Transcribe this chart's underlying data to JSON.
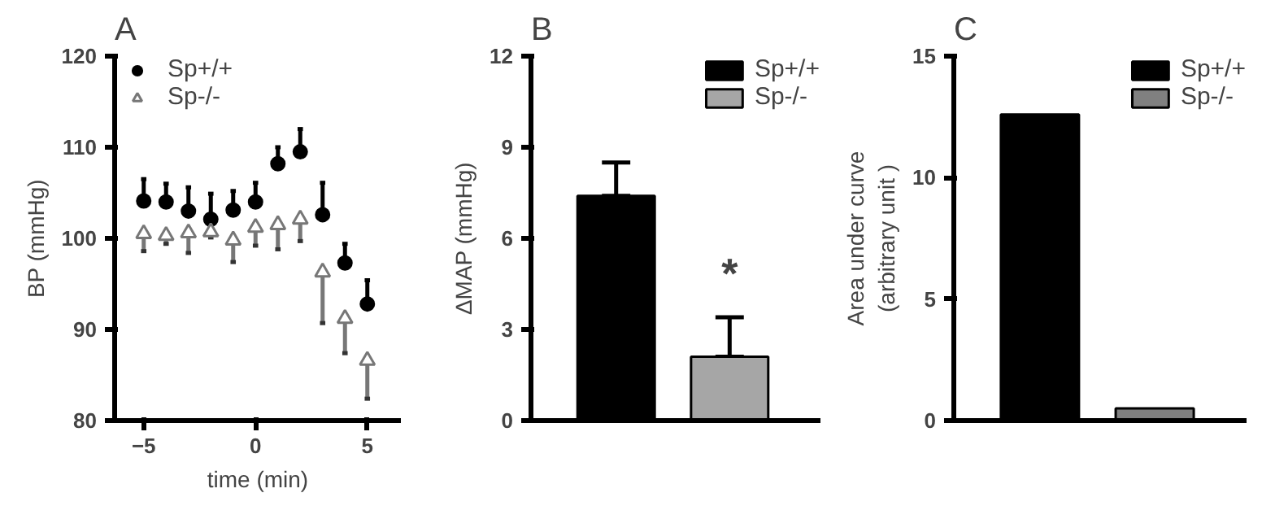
{
  "chart_data": [
    {
      "type": "scatter",
      "title": "A",
      "xlabel": "time (min)",
      "ylabel": "BP (mmHg)",
      "x": [
        -5,
        -4,
        -3,
        -2,
        -1,
        0,
        1,
        2,
        3,
        4,
        5
      ],
      "xlim": [
        -6.3,
        6.5
      ],
      "xticks": [
        -5,
        0,
        5
      ],
      "ylim": [
        80,
        120
      ],
      "yticks": [
        80,
        90,
        100,
        110,
        120
      ],
      "legend": "top left",
      "grid": false,
      "series": [
        {
          "name": "Sp+/+",
          "color": "#000000",
          "marker": "circle",
          "values": [
            104.1,
            104.0,
            103.0,
            102.1,
            103.1,
            104.0,
            108.2,
            109.5,
            102.6,
            97.3,
            92.8
          ],
          "errors": [
            [
              104.1,
              106.5
            ],
            [
              104.0,
              106.0
            ],
            [
              103.0,
              105.6
            ],
            [
              102.1,
              104.9
            ],
            [
              103.1,
              105.2
            ],
            [
              104.0,
              106.1
            ],
            [
              108.2,
              110.0
            ],
            [
              109.5,
              112.0
            ],
            [
              102.6,
              106.1
            ],
            [
              97.3,
              99.4
            ],
            [
              92.8,
              95.4
            ]
          ]
        },
        {
          "name": "Sp-/-",
          "color": "#777777",
          "marker": "triangle",
          "values": [
            100.5,
            100.3,
            100.6,
            100.7,
            99.8,
            101.2,
            101.5,
            102.1,
            96.3,
            91.2,
            86.6
          ],
          "errors": [
            [
              98.6,
              100.5
            ],
            [
              99.4,
              100.3
            ],
            [
              98.4,
              100.6
            ],
            [
              100.1,
              100.7
            ],
            [
              97.4,
              99.8
            ],
            [
              99.2,
              101.2
            ],
            [
              98.8,
              101.5
            ],
            [
              99.7,
              102.1
            ],
            [
              90.7,
              96.3
            ],
            [
              87.4,
              91.2
            ],
            [
              82.4,
              86.6
            ]
          ]
        }
      ]
    },
    {
      "type": "bar",
      "title": "B",
      "ylabel": "ΔMAP (mmHg)",
      "categories": [
        null
      ],
      "ylim": [
        0,
        12
      ],
      "yticks": [
        0,
        3,
        6,
        9,
        12
      ],
      "legend": "top right",
      "grid": false,
      "tick_labels": "y",
      "series": [
        {
          "name": "Sp+/+",
          "color": "#000000",
          "values": [
            7.4
          ],
          "errors": [
            [
              7.4,
              8.5
            ]
          ]
        },
        {
          "name": "Sp-/-",
          "color": "#a6a6a6",
          "values": [
            2.1
          ],
          "errors": [
            [
              2.1,
              3.4
            ]
          ]
        }
      ],
      "annotations": [
        "*"
      ]
    },
    {
      "type": "bar",
      "title": "C",
      "ylabel": "Area under curve\n(arbitrary unit )",
      "categories": [
        null
      ],
      "ylim": [
        0,
        15
      ],
      "yticks": [
        0,
        5,
        10,
        15
      ],
      "legend": "top right",
      "grid": false,
      "tick_labels": "y",
      "series": [
        {
          "name": "Sp+/+",
          "color": "#000000",
          "values": [
            12.6
          ]
        },
        {
          "name": "Sp-/-",
          "color": "#808080",
          "values": [
            0.5
          ]
        }
      ]
    }
  ]
}
